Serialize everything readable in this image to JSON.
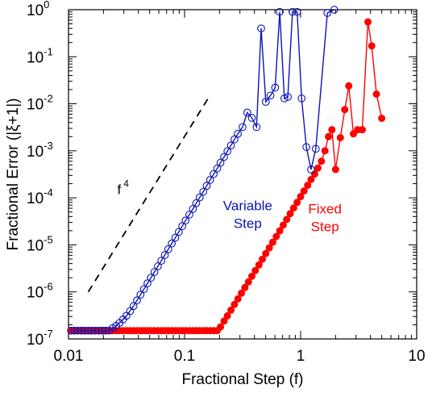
{
  "chart_data": {
    "type": "scatter",
    "xlabel": "Fractional Step (f)",
    "ylabel": "Fractional Error (|ξ+1|)",
    "x_scale": "log",
    "y_scale": "log",
    "xlim": [
      0.01,
      10
    ],
    "ylim": [
      1e-07,
      1
    ],
    "x_tick_labels": [
      {
        "value": 0.01,
        "label": "0.01"
      },
      {
        "value": 0.1,
        "label": "0.1"
      },
      {
        "value": 1,
        "label": "1"
      },
      {
        "value": 10,
        "label": "10"
      }
    ],
    "y_tick_labels": [
      {
        "value": 1e-07,
        "base": "10",
        "exp": "-7"
      },
      {
        "value": 1e-06,
        "base": "10",
        "exp": "-6"
      },
      {
        "value": 1e-05,
        "base": "10",
        "exp": "-5"
      },
      {
        "value": 0.0001,
        "base": "10",
        "exp": "-4"
      },
      {
        "value": 0.001,
        "base": "10",
        "exp": "-3"
      },
      {
        "value": 0.01,
        "base": "10",
        "exp": "-2"
      },
      {
        "value": 0.1,
        "base": "10",
        "exp": "-1"
      },
      {
        "value": 1,
        "base": "10",
        "exp": "0"
      }
    ],
    "grid": false,
    "series": [
      {
        "name": "Variable Step",
        "color": "#0a14b4",
        "marker": "open-circle",
        "points": [
          [
            0.0105,
            1.5e-07
          ],
          [
            0.0112,
            1.5e-07
          ],
          [
            0.012,
            1.5e-07
          ],
          [
            0.0129,
            1.5e-07
          ],
          [
            0.0138,
            1.5e-07
          ],
          [
            0.0148,
            1.5e-07
          ],
          [
            0.0158,
            1.5e-07
          ],
          [
            0.017,
            1.5e-07
          ],
          [
            0.0182,
            1.5e-07
          ],
          [
            0.0195,
            1.5e-07
          ],
          [
            0.0209,
            1.5e-07
          ],
          [
            0.0224,
            1.5e-07
          ],
          [
            0.024,
            1.7e-07
          ],
          [
            0.0257,
            1.9e-07
          ],
          [
            0.0275,
            2.2e-07
          ],
          [
            0.0295,
            2.6e-07
          ],
          [
            0.0316,
            3.1e-07
          ],
          [
            0.0339,
            3.9e-07
          ],
          [
            0.0363,
            5e-07
          ],
          [
            0.0389,
            6.6e-07
          ],
          [
            0.0417,
            8.7e-07
          ],
          [
            0.0447,
            1.15e-06
          ],
          [
            0.0479,
            1.52e-06
          ],
          [
            0.0513,
            2e-06
          ],
          [
            0.055,
            2.65e-06
          ],
          [
            0.0589,
            3.5e-06
          ],
          [
            0.0631,
            4.6e-06
          ],
          [
            0.0676,
            6.1e-06
          ],
          [
            0.0724,
            8.1e-06
          ],
          [
            0.0776,
            1.07e-05
          ],
          [
            0.0832,
            1.42e-05
          ],
          [
            0.0891,
            1.88e-05
          ],
          [
            0.0955,
            2.5e-05
          ],
          [
            0.102,
            3.3e-05
          ],
          [
            0.11,
            4.4e-05
          ],
          [
            0.118,
            5.8e-05
          ],
          [
            0.126,
            7.7e-05
          ],
          [
            0.135,
            0.000102
          ],
          [
            0.145,
            0.000135
          ],
          [
            0.155,
            0.00018
          ],
          [
            0.166,
            0.00024
          ],
          [
            0.178,
            0.00032
          ],
          [
            0.191,
            0.00042
          ],
          [
            0.204,
            0.00056
          ],
          [
            0.219,
            0.00074
          ],
          [
            0.234,
            0.00098
          ],
          [
            0.251,
            0.0013
          ],
          [
            0.269,
            0.00175
          ],
          [
            0.288,
            0.0023
          ],
          [
            0.316,
            0.0032
          ],
          [
            0.347,
            0.0065
          ],
          [
            0.38,
            0.005
          ],
          [
            0.417,
            0.0032
          ],
          [
            0.457,
            0.4
          ],
          [
            0.501,
            0.011
          ],
          [
            0.55,
            0.015
          ],
          [
            0.603,
            0.022
          ],
          [
            0.661,
            0.9
          ],
          [
            0.724,
            0.013
          ],
          [
            0.776,
            0.014
          ],
          [
            0.851,
            0.9
          ],
          [
            0.933,
            0.9
          ],
          [
            1.02,
            0.013
          ],
          [
            1.12,
            0.0012
          ],
          [
            1.23,
            0.0004
          ],
          [
            1.35,
            0.0011
          ],
          [
            1.7,
            0.85
          ],
          [
            1.95,
            1.0
          ]
        ]
      },
      {
        "name": "Fixed Step",
        "color": "#ff0000",
        "marker": "filled-circle",
        "points": [
          [
            0.0105,
            1.5e-07
          ],
          [
            0.0112,
            1.5e-07
          ],
          [
            0.012,
            1.5e-07
          ],
          [
            0.0129,
            1.5e-07
          ],
          [
            0.0138,
            1.5e-07
          ],
          [
            0.0148,
            1.5e-07
          ],
          [
            0.0158,
            1.5e-07
          ],
          [
            0.017,
            1.5e-07
          ],
          [
            0.0182,
            1.5e-07
          ],
          [
            0.0195,
            1.5e-07
          ],
          [
            0.0209,
            1.5e-07
          ],
          [
            0.0224,
            1.5e-07
          ],
          [
            0.024,
            1.5e-07
          ],
          [
            0.0257,
            1.5e-07
          ],
          [
            0.0275,
            1.5e-07
          ],
          [
            0.0295,
            1.5e-07
          ],
          [
            0.0316,
            1.5e-07
          ],
          [
            0.0339,
            1.5e-07
          ],
          [
            0.0363,
            1.5e-07
          ],
          [
            0.0389,
            1.5e-07
          ],
          [
            0.0417,
            1.5e-07
          ],
          [
            0.0447,
            1.5e-07
          ],
          [
            0.0479,
            1.5e-07
          ],
          [
            0.0513,
            1.5e-07
          ],
          [
            0.055,
            1.5e-07
          ],
          [
            0.0589,
            1.5e-07
          ],
          [
            0.0631,
            1.5e-07
          ],
          [
            0.0676,
            1.5e-07
          ],
          [
            0.0724,
            1.5e-07
          ],
          [
            0.0776,
            1.5e-07
          ],
          [
            0.0832,
            1.5e-07
          ],
          [
            0.0891,
            1.5e-07
          ],
          [
            0.0955,
            1.5e-07
          ],
          [
            0.102,
            1.5e-07
          ],
          [
            0.11,
            1.5e-07
          ],
          [
            0.118,
            1.5e-07
          ],
          [
            0.126,
            1.5e-07
          ],
          [
            0.135,
            1.5e-07
          ],
          [
            0.145,
            1.5e-07
          ],
          [
            0.155,
            1.5e-07
          ],
          [
            0.166,
            1.5e-07
          ],
          [
            0.178,
            1.5e-07
          ],
          [
            0.191,
            1.5e-07
          ],
          [
            0.204,
            1.8e-07
          ],
          [
            0.219,
            2.4e-07
          ],
          [
            0.234,
            3.1e-07
          ],
          [
            0.251,
            4.1e-07
          ],
          [
            0.269,
            5.4e-07
          ],
          [
            0.288,
            7.1e-07
          ],
          [
            0.309,
            9.4e-07
          ],
          [
            0.331,
            1.24e-06
          ],
          [
            0.355,
            1.63e-06
          ],
          [
            0.38,
            2.15e-06
          ],
          [
            0.407,
            2.85e-06
          ],
          [
            0.437,
            3.75e-06
          ],
          [
            0.468,
            4.95e-06
          ],
          [
            0.501,
            6.55e-06
          ],
          [
            0.537,
            8.65e-06
          ],
          [
            0.575,
            1.14e-05
          ],
          [
            0.617,
            1.51e-05
          ],
          [
            0.661,
            1.99e-05
          ],
          [
            0.708,
            2.63e-05
          ],
          [
            0.759,
            3.48e-05
          ],
          [
            0.813,
            4.6e-05
          ],
          [
            0.871,
            6.1e-05
          ],
          [
            0.933,
            8e-05
          ],
          [
            1.0,
            0.000106
          ],
          [
            1.07,
            0.00014
          ],
          [
            1.15,
            0.000185
          ],
          [
            1.23,
            0.000245
          ],
          [
            1.32,
            0.00032
          ],
          [
            1.41,
            0.00043
          ],
          [
            1.51,
            0.0006
          ],
          [
            1.62,
            0.001
          ],
          [
            1.74,
            0.002
          ],
          [
            1.86,
            0.0028
          ],
          [
            2.0,
            0.0004
          ],
          [
            2.2,
            0.0019
          ],
          [
            2.4,
            0.0075
          ],
          [
            2.6,
            0.024
          ],
          [
            2.85,
            0.0023
          ],
          [
            3.1,
            0.0028
          ],
          [
            3.4,
            0.0028
          ],
          [
            3.8,
            0.55
          ],
          [
            4.1,
            0.17
          ],
          [
            4.5,
            0.016
          ],
          [
            5.0,
            0.0049
          ]
        ]
      }
    ],
    "reference_line": {
      "label_base": "f",
      "label_exp": "4",
      "style": "dashed",
      "color": "#000000",
      "from": [
        0.0148,
        1e-06
      ],
      "to": [
        0.158,
        0.0125
      ]
    },
    "annotations": [
      {
        "id": "variable",
        "lines": [
          "Variable",
          "Step"
        ],
        "color": "#0a14b4"
      },
      {
        "id": "fixed",
        "lines": [
          "Fixed",
          "Step"
        ],
        "color": "#ff0000"
      }
    ]
  }
}
